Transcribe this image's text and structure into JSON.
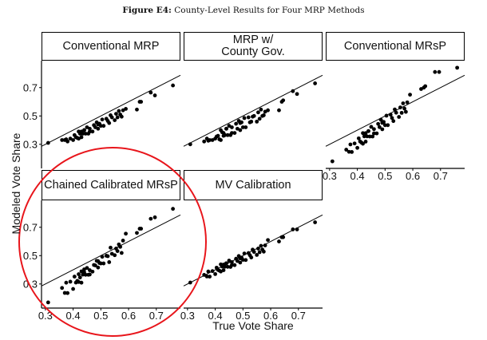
{
  "figure": {
    "label": "Figure E4:",
    "caption": "County-Level Results for Four MRP Methods"
  },
  "chart_data": {
    "type": "scatter",
    "layout": "facet 3x2",
    "xlabel": "True Vote Share",
    "ylabel": "Modeled Vote Share",
    "xlim": [
      0.286,
      0.787
    ],
    "ylim": [
      0.13,
      0.89
    ],
    "xticks": [
      0.3,
      0.4,
      0.5,
      0.6,
      0.7
    ],
    "xtick_labels": [
      "0.3",
      "0.4",
      "0.5",
      "0.6",
      "0.7"
    ],
    "yticks": [
      0.3,
      0.5,
      0.7
    ],
    "ytick_labels": [
      "0.3",
      "0.5",
      "0.7"
    ],
    "reference_line": "y = x",
    "grid": false,
    "x": [
      0.31,
      0.36,
      0.37,
      0.375,
      0.38,
      0.39,
      0.4,
      0.405,
      0.41,
      0.415,
      0.42,
      0.42,
      0.425,
      0.43,
      0.43,
      0.435,
      0.44,
      0.445,
      0.45,
      0.455,
      0.46,
      0.47,
      0.475,
      0.48,
      0.485,
      0.49,
      0.495,
      0.5,
      0.505,
      0.51,
      0.52,
      0.525,
      0.53,
      0.535,
      0.54,
      0.55,
      0.555,
      0.56,
      0.565,
      0.57,
      0.575,
      0.58,
      0.59,
      0.63,
      0.64,
      0.645,
      0.68,
      0.695,
      0.76,
      0.44,
      0.46,
      0.49
    ],
    "series": [
      {
        "name": "Conventional MRP",
        "y": [
          0.31,
          0.33,
          0.33,
          0.335,
          0.32,
          0.34,
          0.33,
          0.365,
          0.35,
          0.345,
          0.39,
          0.34,
          0.375,
          0.39,
          0.35,
          0.375,
          0.4,
          0.375,
          0.42,
          0.375,
          0.41,
          0.39,
          0.435,
          0.42,
          0.455,
          0.41,
          0.445,
          0.43,
          0.475,
          0.43,
          0.48,
          0.465,
          0.45,
          0.505,
          0.49,
          0.47,
          0.515,
          0.49,
          0.535,
          0.51,
          0.495,
          0.54,
          0.55,
          0.545,
          0.6,
          0.6,
          0.665,
          0.645,
          0.715,
          0.4,
          0.39,
          0.44
        ]
      },
      {
        "name": "MRP w/\nCounty Gov.",
        "y": [
          0.3,
          0.32,
          0.34,
          0.325,
          0.33,
          0.33,
          0.34,
          0.355,
          0.36,
          0.335,
          0.4,
          0.33,
          0.385,
          0.38,
          0.36,
          0.365,
          0.41,
          0.365,
          0.43,
          0.365,
          0.42,
          0.38,
          0.445,
          0.41,
          0.465,
          0.4,
          0.455,
          0.42,
          0.485,
          0.42,
          0.49,
          0.455,
          0.46,
          0.495,
          0.5,
          0.46,
          0.525,
          0.48,
          0.545,
          0.5,
          0.505,
          0.53,
          0.54,
          0.54,
          0.6,
          0.61,
          0.675,
          0.655,
          0.73,
          0.41,
          0.38,
          0.45
        ]
      },
      {
        "name": "Conventional MRsP",
        "y": [
          0.18,
          0.262,
          0.247,
          0.299,
          0.246,
          0.306,
          0.275,
          0.342,
          0.32,
          0.312,
          0.379,
          0.304,
          0.356,
          0.379,
          0.319,
          0.356,
          0.393,
          0.355,
          0.423,
          0.355,
          0.407,
          0.377,
          0.444,
          0.421,
          0.473,
          0.406,
          0.458,
          0.435,
          0.502,
          0.435,
          0.509,
          0.486,
          0.464,
          0.546,
          0.523,
          0.493,
          0.56,
          0.522,
          0.589,
          0.552,
          0.529,
          0.596,
          0.65,
          0.69,
          0.7,
          0.71,
          0.81,
          0.81,
          0.84,
          0.393,
          0.377,
          0.451
        ]
      },
      {
        "name": "Chained Calibrated MRsP",
        "y": [
          0.17,
          0.272,
          0.237,
          0.309,
          0.236,
          0.316,
          0.265,
          0.352,
          0.31,
          0.322,
          0.369,
          0.314,
          0.346,
          0.389,
          0.309,
          0.366,
          0.383,
          0.365,
          0.413,
          0.365,
          0.397,
          0.387,
          0.434,
          0.431,
          0.463,
          0.416,
          0.448,
          0.445,
          0.492,
          0.445,
          0.499,
          0.496,
          0.454,
          0.556,
          0.513,
          0.503,
          0.55,
          0.532,
          0.579,
          0.562,
          0.519,
          0.606,
          0.655,
          0.66,
          0.69,
          0.69,
          0.76,
          0.77,
          0.83,
          0.403,
          0.367,
          0.461
        ]
      },
      {
        "name": "MV Calibration",
        "y": [
          0.31,
          0.364,
          0.353,
          0.388,
          0.352,
          0.391,
          0.37,
          0.415,
          0.399,
          0.394,
          0.438,
          0.388,
          0.423,
          0.437,
          0.397,
          0.422,
          0.446,
          0.421,
          0.465,
          0.42,
          0.454,
          0.433,
          0.478,
          0.462,
          0.497,
          0.451,
          0.486,
          0.47,
          0.515,
          0.469,
          0.518,
          0.503,
          0.487,
          0.542,
          0.526,
          0.505,
          0.55,
          0.524,
          0.569,
          0.543,
          0.528,
          0.572,
          0.61,
          0.6,
          0.63,
          0.63,
          0.685,
          0.685,
          0.735,
          0.446,
          0.434,
          0.481
        ]
      }
    ]
  },
  "annotation": {
    "highlight_color": "#e8151b"
  },
  "colors": {
    "points": "#000000",
    "line": "#000000"
  }
}
